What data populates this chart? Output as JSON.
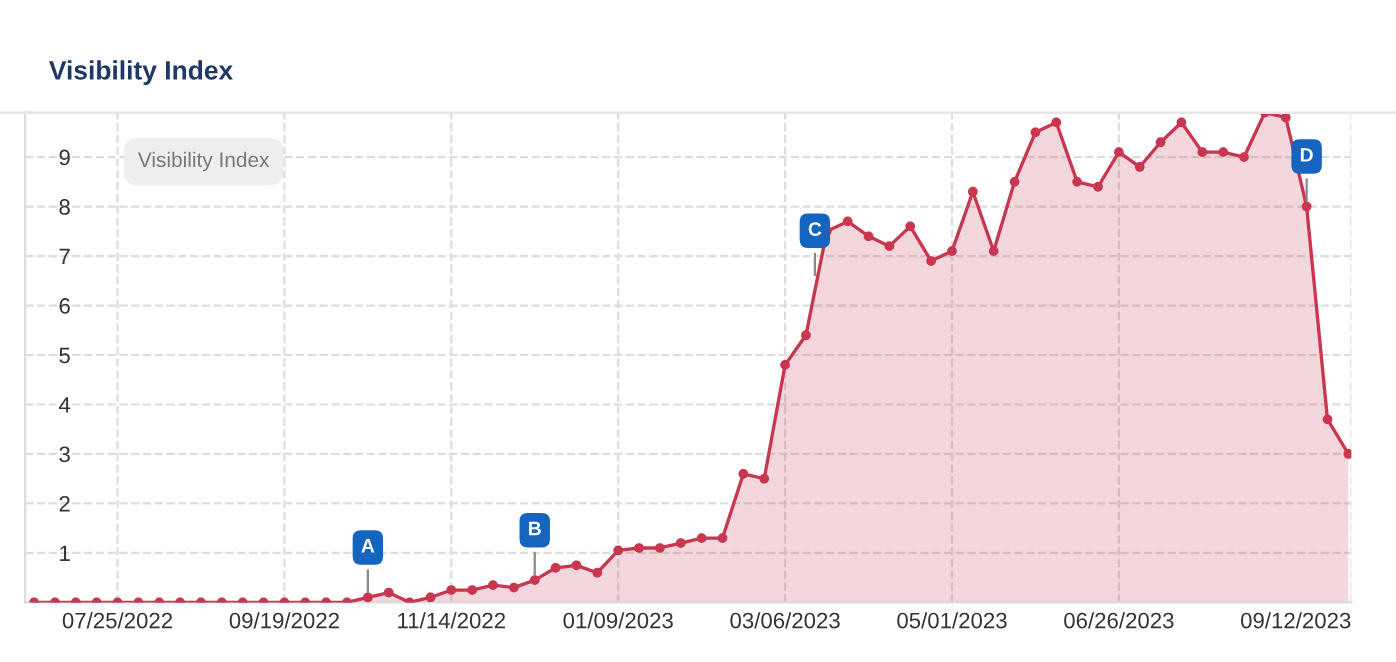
{
  "chart_data": {
    "type": "area",
    "title": "Visibility Index",
    "legend_title": "Visibility Index",
    "x": [
      "2022-06-27",
      "2022-07-04",
      "2022-07-11",
      "2022-07-18",
      "2022-07-25",
      "2022-08-01",
      "2022-08-08",
      "2022-08-15",
      "2022-08-22",
      "2022-08-29",
      "2022-09-05",
      "2022-09-12",
      "2022-09-19",
      "2022-09-26",
      "2022-10-03",
      "2022-10-10",
      "2022-10-17",
      "2022-10-24",
      "2022-10-31",
      "2022-11-07",
      "2022-11-14",
      "2022-11-21",
      "2022-11-28",
      "2022-12-05",
      "2022-12-12",
      "2022-12-19",
      "2022-12-26",
      "2023-01-02",
      "2023-01-09",
      "2023-01-16",
      "2023-01-23",
      "2023-01-30",
      "2023-02-06",
      "2023-02-13",
      "2023-02-20",
      "2023-02-27",
      "2023-03-06",
      "2023-03-13",
      "2023-03-20",
      "2023-03-27",
      "2023-04-03",
      "2023-04-10",
      "2023-04-17",
      "2023-04-24",
      "2023-05-01",
      "2023-05-08",
      "2023-05-15",
      "2023-05-22",
      "2023-05-29",
      "2023-06-05",
      "2023-06-12",
      "2023-06-19",
      "2023-06-26",
      "2023-07-03",
      "2023-07-10",
      "2023-07-17",
      "2023-07-24",
      "2023-07-31",
      "2023-08-07",
      "2023-08-14",
      "2023-08-21",
      "2023-08-28",
      "2023-09-04",
      "2023-09-11"
    ],
    "series": [
      {
        "color": "#c8374f",
        "values": [
          0,
          0,
          0,
          0,
          0,
          0,
          0,
          0,
          0,
          0,
          0,
          0,
          0,
          0,
          0,
          0,
          0.1,
          0.2,
          0,
          0.1,
          0.25,
          0.25,
          0.35,
          0.3,
          0.45,
          0.7,
          0.75,
          0.6,
          1.05,
          1.1,
          1.1,
          1.2,
          1.3,
          1.3,
          2.6,
          2.5,
          4.8,
          5.4,
          7.5,
          7.7,
          7.4,
          7.2,
          7.6,
          6.9,
          7.1,
          8.3,
          7.1,
          8.5,
          9.5,
          9.7,
          8.5,
          8.4,
          9.1,
          8.8,
          9.3,
          9.7,
          9.1,
          9.1,
          9,
          9.9,
          9.8,
          8,
          3.7,
          3
        ]
      }
    ],
    "marker": "circle",
    "grid": true,
    "line_style": "solid",
    "xlim": [
      "2022-06-24",
      "2023-09-12"
    ],
    "ylim": [
      0,
      9.9
    ],
    "yticks": [
      {
        "value": 0,
        "label": null
      },
      1,
      2,
      3,
      4,
      5,
      6,
      7,
      8,
      9
    ],
    "xticks": [
      {
        "value": "2022-07-25",
        "label": "07/25/2022"
      },
      {
        "value": "2022-09-19",
        "label": "09/19/2022"
      },
      {
        "value": "2022-11-14",
        "label": "11/14/2022"
      },
      {
        "value": "2023-01-09",
        "label": "01/09/2023"
      },
      {
        "value": "2023-03-06",
        "label": "03/06/2023"
      },
      {
        "value": "2023-05-01",
        "label": "05/01/2023"
      },
      {
        "value": "2023-06-26",
        "label": "06/26/2023"
      },
      {
        "value": "2023-09-12",
        "label": "09/12/2023"
      }
    ],
    "annotations": [
      {
        "text": "A",
        "x": "2022-10-17",
        "y": 0.1
      },
      {
        "text": "B",
        "x": "2022-12-12",
        "y": 0.45
      },
      {
        "text": "C",
        "x": "2023-03-16",
        "y": 6.5
      },
      {
        "text": "D",
        "x": "2023-08-28",
        "y": 8.0
      }
    ]
  }
}
